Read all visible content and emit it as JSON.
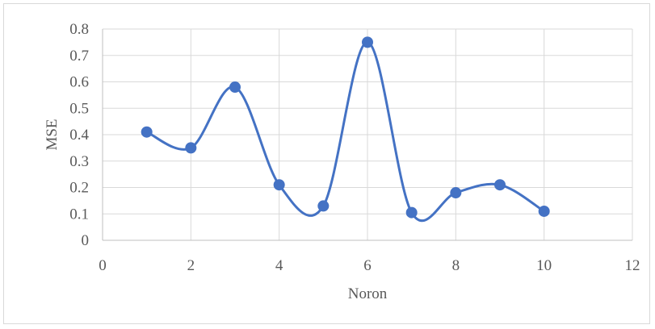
{
  "chart_data": {
    "type": "line",
    "smooth": true,
    "markers": true,
    "title": "",
    "xlabel": "Noron",
    "ylabel": "MSE",
    "xlim": [
      0,
      12
    ],
    "ylim": [
      0,
      0.8
    ],
    "xticks": [
      0,
      2,
      4,
      6,
      8,
      10,
      12
    ],
    "yticks": [
      0,
      0.1,
      0.2,
      0.3,
      0.4,
      0.5,
      0.6,
      0.7,
      0.8
    ],
    "grid": true,
    "legend": "none",
    "series": [
      {
        "color": "#4472c4",
        "x": [
          1,
          2,
          3,
          4,
          5,
          6,
          7,
          8,
          9,
          10
        ],
        "y": [
          0.41,
          0.35,
          0.58,
          0.21,
          0.13,
          0.75,
          0.105,
          0.18,
          0.21,
          0.11
        ]
      }
    ],
    "colors": {
      "gridline": "#d9d9d9",
      "axis": "#bfbfbf",
      "text": "#595959"
    }
  }
}
